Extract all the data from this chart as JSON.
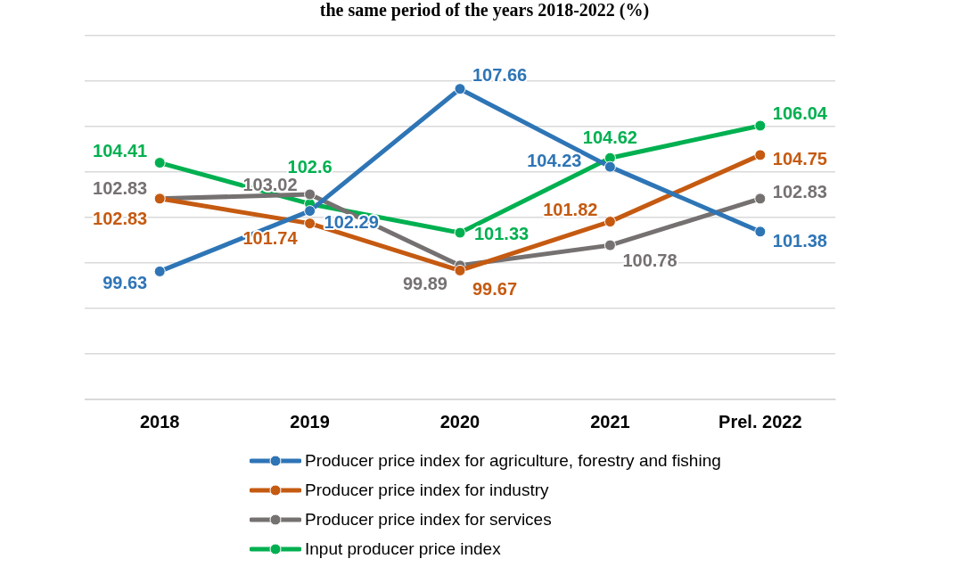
{
  "chart_data": {
    "type": "line",
    "title": "the same period of the years 2018-2022 (%)",
    "categories": [
      "2018",
      "2019",
      "2020",
      "2021",
      "Prel. 2022"
    ],
    "series": [
      {
        "name": "Producer price index for agriculture, forestry and fishing",
        "color": "#2e75b6",
        "values": [
          99.63,
          102.29,
          107.66,
          104.23,
          101.38
        ]
      },
      {
        "name": "Producer price index for industry",
        "color": "#c55a11",
        "values": [
          102.83,
          101.74,
          99.67,
          101.82,
          104.75
        ]
      },
      {
        "name": "Producer price index for services",
        "color": "#767171",
        "values": [
          102.83,
          103.02,
          99.89,
          100.78,
          102.83
        ]
      },
      {
        "name": "Input producer price index",
        "color": "#00b050",
        "values": [
          104.41,
          102.6,
          101.33,
          104.62,
          106.04
        ]
      }
    ],
    "ylim": [
      94,
      110
    ],
    "yticks": [
      {
        "value": 94,
        "label": null
      },
      {
        "value": 96,
        "label": null
      },
      {
        "value": 98,
        "label": null
      },
      {
        "value": 100,
        "label": null
      },
      {
        "value": 102,
        "label": null
      },
      {
        "value": 104,
        "label": null
      },
      {
        "value": 106,
        "label": null
      },
      {
        "value": 108,
        "label": null
      },
      {
        "value": 110,
        "label": null
      }
    ],
    "tick_labels": "x",
    "grid": "y",
    "legend": "bottom",
    "marker": "circle",
    "line_style": "solid",
    "data_labels": true
  }
}
